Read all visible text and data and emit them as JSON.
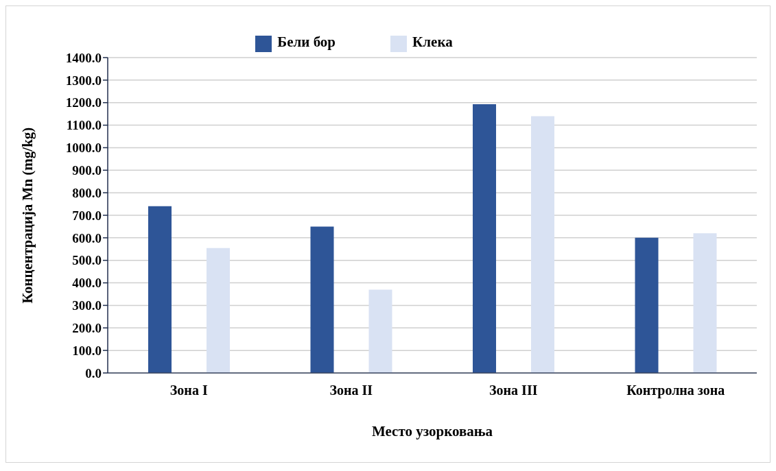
{
  "chart_data": {
    "type": "bar",
    "categories": [
      "Зона I",
      "Зона II",
      "Зона III",
      "Контролна зона"
    ],
    "series": [
      {
        "name": "Бели бор",
        "color": "#2e5597",
        "values": [
          740,
          650,
          1193,
          600
        ]
      },
      {
        "name": "Клека",
        "color": "#d9e2f3",
        "values": [
          555,
          370,
          1140,
          620
        ]
      }
    ],
    "xlabel": "Место узорковања",
    "ylabel": "Концентрација Mn (mg/kg)",
    "ylim": [
      0,
      1400
    ],
    "yticks": [
      {
        "value": 0,
        "label": "0.0"
      },
      {
        "value": 100,
        "label": "100.0"
      },
      {
        "value": 200,
        "label": "200.0"
      },
      {
        "value": 300,
        "label": "300.0"
      },
      {
        "value": 400,
        "label": "400.0"
      },
      {
        "value": 500,
        "label": "500.0"
      },
      {
        "value": 600,
        "label": "600.0"
      },
      {
        "value": 700,
        "label": "700.0"
      },
      {
        "value": 800,
        "label": "800.0"
      },
      {
        "value": 900,
        "label": "900.0"
      },
      {
        "value": 1000,
        "label": "1000.0"
      },
      {
        "value": 1100,
        "label": "1100.0"
      },
      {
        "value": 1200,
        "label": "1200.0"
      },
      {
        "value": 1300,
        "label": "1300.0"
      },
      {
        "value": 1400,
        "label": "1400.0"
      }
    ],
    "grid": "y",
    "legend": "top"
  }
}
